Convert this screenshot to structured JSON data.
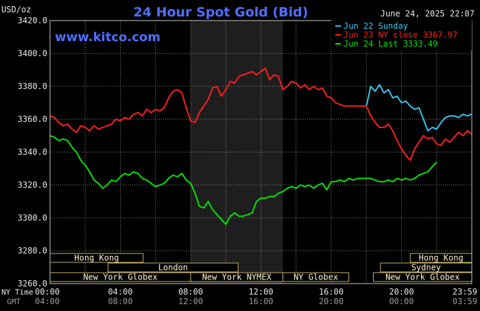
{
  "header": {
    "unit": "USD/oz",
    "title": "24 Hour Spot Gold (Bid)",
    "timestamp": "June 24, 2025 22:07",
    "site": "www.kitco.com"
  },
  "colors": {
    "background": "#000000",
    "frame": "#c8c8c8",
    "grid": "#8a8a8a",
    "title": "#4f6fff",
    "site": "#4f6fff",
    "session_fill": "#fff6d2",
    "session_border": "#c8b26a",
    "night_shade": "#1e1e1e"
  },
  "legend": [
    {
      "label": "Jun 22 Sunday",
      "color": "#35c6ee"
    },
    {
      "label": "Jun 23 NY close 3367.97",
      "color": "#ff1e1e"
    },
    {
      "label": "Jun 24 Last 3333.49",
      "color": "#00e600"
    }
  ],
  "axis": {
    "ny_time_label": "NY Time",
    "gmt_label": "GMT",
    "y_ticks": [
      "3420.0",
      "3400.0",
      "3380.0",
      "3360.0",
      "3340.0",
      "3320.0",
      "3300.0",
      "3280.0",
      "3260.0"
    ],
    "x_ticks_ny": [
      "00:00",
      "04:00",
      "08:00",
      "12:00",
      "16:00",
      "20:00",
      "23:59"
    ],
    "x_ticks_gmt": [
      "04:00",
      "08:00",
      "12:00",
      "16:00",
      "20:00",
      "00:00",
      "03:59"
    ]
  },
  "sessions": [
    {
      "label": "Hong Kong",
      "row": 1,
      "start_h": 0,
      "end_h": 5.3
    },
    {
      "label": "Hong Kong",
      "row": 1,
      "start_h": 20.5,
      "end_h": 24
    },
    {
      "label": "London",
      "row": 2,
      "start_h": 3.3,
      "end_h": 10.7
    },
    {
      "label": "Sydney",
      "row": 2,
      "start_h": 18.8,
      "end_h": 24
    },
    {
      "label": "New York Globex",
      "row": 3,
      "start_h": 0,
      "end_h": 8
    },
    {
      "label": "New York NYMEX",
      "row": 3,
      "start_h": 8,
      "end_h": 13.25
    },
    {
      "label": "NY Globex",
      "row": 3,
      "start_h": 13.25,
      "end_h": 17
    },
    {
      "label": "New York Globex",
      "row": 3,
      "start_h": 18.4,
      "end_h": 24
    }
  ],
  "chart_data": {
    "type": "line",
    "title": "24 Hour Spot Gold (Bid)",
    "ylabel": "USD/oz",
    "xlabel": "NY Time",
    "xlim": [
      0,
      24
    ],
    "ylim": [
      3260,
      3420
    ],
    "y_ticks": [
      3260,
      3280,
      3300,
      3320,
      3340,
      3360,
      3380,
      3400,
      3420
    ],
    "x_ticks": [
      0,
      4,
      8,
      12,
      16,
      20,
      23.98
    ],
    "grid": true,
    "legend_position": "top-right",
    "shaded_hours": [
      8.0,
      13.25
    ],
    "series": [
      {
        "name": "Jun 22 Sunday",
        "color": "#35c6ee",
        "x": [
          18.0,
          18.25,
          18.5,
          18.75,
          19.0,
          19.25,
          19.5,
          19.75,
          20.0,
          20.25,
          20.5,
          20.75,
          21.0,
          21.25,
          21.5,
          21.75,
          22.0,
          22.25,
          22.5,
          22.75,
          23.0,
          23.25,
          23.5,
          23.75,
          23.98
        ],
        "y": [
          3368,
          3380,
          3377,
          3381,
          3376,
          3378,
          3373,
          3374,
          3370,
          3371,
          3368,
          3366,
          3367,
          3360,
          3353,
          3355,
          3354,
          3358,
          3361,
          3362,
          3362,
          3361,
          3363,
          3362,
          3363
        ]
      },
      {
        "name": "Jun 23 NY close 3367.97",
        "color": "#ff1e1e",
        "x": [
          0.0,
          0.25,
          0.5,
          0.75,
          1.0,
          1.25,
          1.5,
          1.75,
          2.0,
          2.25,
          2.5,
          2.75,
          3.0,
          3.25,
          3.5,
          3.75,
          4.0,
          4.25,
          4.5,
          4.75,
          5.0,
          5.25,
          5.5,
          5.75,
          6.0,
          6.25,
          6.5,
          6.75,
          7.0,
          7.25,
          7.5,
          7.75,
          8.0,
          8.25,
          8.5,
          8.75,
          9.0,
          9.25,
          9.5,
          9.75,
          10.0,
          10.25,
          10.5,
          10.75,
          11.0,
          11.25,
          11.5,
          11.75,
          12.0,
          12.25,
          12.5,
          12.75,
          13.0,
          13.25,
          13.5,
          13.75,
          14.0,
          14.25,
          14.5,
          14.75,
          15.0,
          15.25,
          15.5,
          15.75,
          16.0,
          16.25,
          16.5,
          16.75,
          17.0,
          17.25,
          17.5,
          17.75,
          18.0,
          18.25,
          18.5,
          18.75,
          19.0,
          19.25,
          19.5,
          19.75,
          20.0,
          20.25,
          20.5,
          20.75,
          21.0,
          21.25,
          21.5,
          21.75,
          22.0,
          22.25,
          22.5,
          22.75,
          23.0,
          23.25,
          23.5,
          23.75,
          23.98
        ],
        "y": [
          3362,
          3361,
          3358,
          3356,
          3357,
          3354,
          3352,
          3356,
          3355,
          3353,
          3356,
          3354,
          3355,
          3356,
          3357,
          3360,
          3359,
          3361,
          3360,
          3363,
          3364,
          3362,
          3366,
          3364,
          3366,
          3365,
          3367,
          3373,
          3377,
          3378,
          3376,
          3367,
          3359,
          3358,
          3364,
          3368,
          3372,
          3379,
          3380,
          3374,
          3378,
          3383,
          3382,
          3386,
          3387,
          3388,
          3389,
          3387,
          3389,
          3391,
          3384,
          3387,
          3386,
          3378,
          3380,
          3383,
          3382,
          3379,
          3381,
          3378,
          3380,
          3378,
          3379,
          3374,
          3373,
          3370,
          3369,
          3368,
          3368,
          3368,
          3368,
          3368,
          3368,
          3362,
          3358,
          3355,
          3355,
          3357,
          3353,
          3347,
          3342,
          3338,
          3335,
          3342,
          3346,
          3350,
          3348,
          3349,
          3345,
          3344,
          3348,
          3346,
          3349,
          3352,
          3350,
          3353,
          3351
        ]
      },
      {
        "name": "Jun 24 Last 3333.49",
        "color": "#00e600",
        "x": [
          0.0,
          0.25,
          0.5,
          0.75,
          1.0,
          1.25,
          1.5,
          1.75,
          2.0,
          2.25,
          2.5,
          2.75,
          3.0,
          3.25,
          3.5,
          3.75,
          4.0,
          4.25,
          4.5,
          4.75,
          5.0,
          5.25,
          5.5,
          5.75,
          6.0,
          6.25,
          6.5,
          6.75,
          7.0,
          7.25,
          7.5,
          7.75,
          8.0,
          8.25,
          8.5,
          8.75,
          9.0,
          9.25,
          9.5,
          9.75,
          10.0,
          10.25,
          10.5,
          10.75,
          11.0,
          11.25,
          11.5,
          11.75,
          12.0,
          12.25,
          12.5,
          12.75,
          13.0,
          13.25,
          13.5,
          13.75,
          14.0,
          14.25,
          14.5,
          14.75,
          15.0,
          15.25,
          15.5,
          15.75,
          16.0,
          16.25,
          16.5,
          16.75,
          17.0,
          17.25,
          17.5,
          17.75,
          18.0,
          18.25,
          18.5,
          18.75,
          19.0,
          19.25,
          19.5,
          19.75,
          20.0,
          20.25,
          20.5,
          20.75,
          21.0,
          21.25,
          21.5,
          21.75,
          22.0
        ],
        "y": [
          3350,
          3349,
          3347,
          3348,
          3347,
          3343,
          3340,
          3335,
          3332,
          3328,
          3323,
          3321,
          3318,
          3320,
          3323,
          3322,
          3325,
          3327,
          3326,
          3328,
          3327,
          3324,
          3323,
          3321,
          3319,
          3320,
          3321,
          3324,
          3326,
          3325,
          3327,
          3323,
          3321,
          3315,
          3307,
          3306,
          3310,
          3305,
          3302,
          3299,
          3296,
          3301,
          3303,
          3301,
          3301,
          3302,
          3303,
          3310,
          3312,
          3312,
          3313,
          3313,
          3315,
          3316,
          3318,
          3319,
          3318,
          3320,
          3319,
          3320,
          3318,
          3320,
          3321,
          3317,
          3322,
          3322,
          3323,
          3322,
          3324,
          3323,
          3324,
          3324,
          3324,
          3324,
          3323,
          3322,
          3322,
          3323,
          3322,
          3324,
          3323,
          3324,
          3323,
          3324,
          3326,
          3327,
          3328,
          3331,
          3334
        ]
      }
    ]
  }
}
